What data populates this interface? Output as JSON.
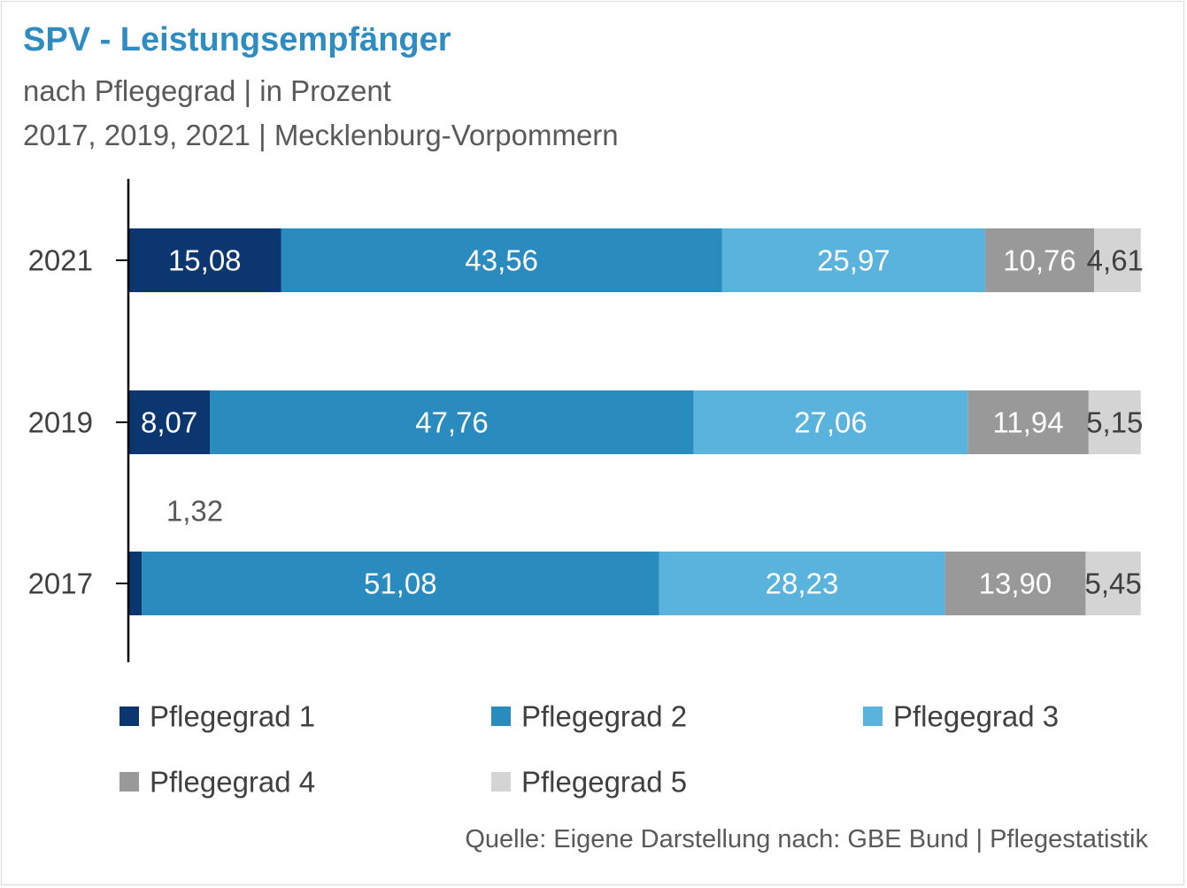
{
  "header": {
    "title": "SPV - Leistungsempfänger",
    "subtitle_line1": "nach Pflegegrad | in Prozent",
    "subtitle_line2": "2017, 2019, 2021 | Mecklenburg-Vorpommern"
  },
  "footer": {
    "source": "Quelle: Eigene Darstellung nach: GBE Bund | Pflegestatistik"
  },
  "chart_data": {
    "type": "bar",
    "orientation": "horizontal",
    "stacked": true,
    "categories": [
      "2021",
      "2019",
      "2017"
    ],
    "series": [
      {
        "name": "Pflegegrad 1",
        "values": [
          15.08,
          8.07,
          1.32
        ],
        "labels": [
          "15,08",
          "8,07",
          "1,32"
        ],
        "color": "#0b3670",
        "label_color": "#ffffff"
      },
      {
        "name": "Pflegegrad 2",
        "values": [
          43.56,
          47.76,
          51.08
        ],
        "labels": [
          "43,56",
          "47,76",
          "51,08"
        ],
        "color": "#2a8bbf",
        "label_color": "#ffffff"
      },
      {
        "name": "Pflegegrad 3",
        "values": [
          25.97,
          27.06,
          28.23
        ],
        "labels": [
          "25,97",
          "27,06",
          "28,23"
        ],
        "color": "#5ab3dd",
        "label_color": "#ffffff"
      },
      {
        "name": "Pflegegrad 4",
        "values": [
          10.76,
          11.94,
          13.9
        ],
        "labels": [
          "10,76",
          "11,94",
          "13,90"
        ],
        "color": "#999999",
        "label_color": "#ffffff"
      },
      {
        "name": "Pflegegrad 5",
        "values": [
          4.61,
          5.15,
          5.45
        ],
        "labels": [
          "4,61",
          "5,15",
          "5,45"
        ],
        "color": "#d4d4d4",
        "label_color": "#404040"
      }
    ],
    "xlim": [
      0,
      100
    ],
    "grid": false,
    "legend_position": "bottom"
  }
}
